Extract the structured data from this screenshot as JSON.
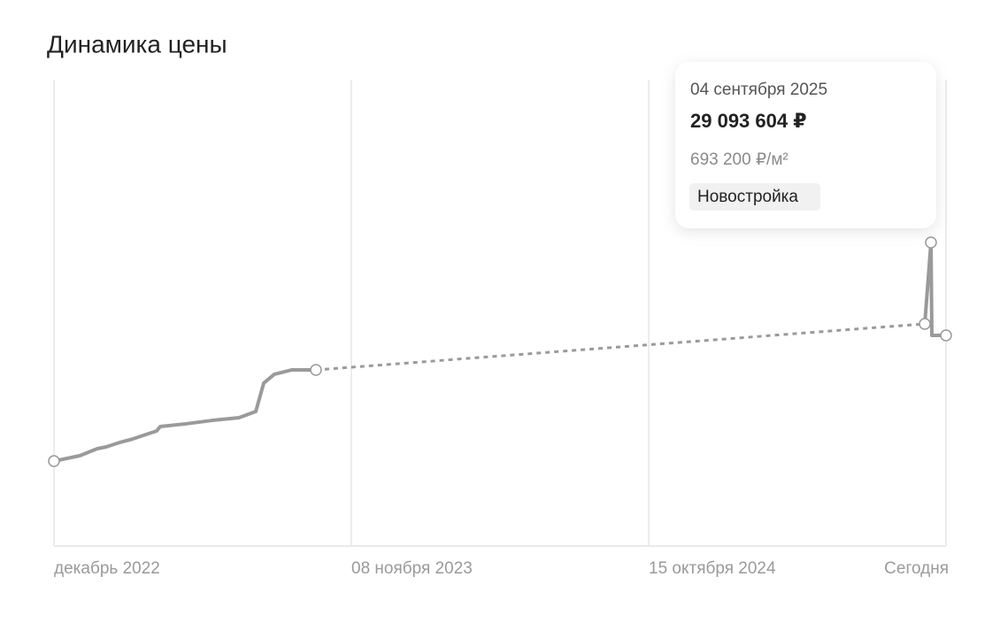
{
  "chart_data": {
    "type": "line",
    "title": "Динамика цены",
    "xlim": [
      0,
      1008
    ],
    "xticks": [
      {
        "value": 0,
        "label": "декабрь 2022"
      },
      {
        "value": 336,
        "label": "08 ноября 2023"
      },
      {
        "value": 672,
        "label": "15 октября 2024"
      },
      {
        "value": 1008,
        "label": "Сегодня"
      }
    ],
    "ylim": [
      0,
      44700000
    ],
    "grid": true,
    "connector": "dashed",
    "series": [
      {
        "color": "#9a9a9a",
        "x": [
          0,
          29,
          49,
          59,
          74,
          89,
          104,
          116,
          120,
          149,
          179,
          209,
          228,
          237,
          249,
          269,
          296
        ],
        "values": [
          8140000,
          8650000,
          9330000,
          9500000,
          9920000,
          10260000,
          10690000,
          11030000,
          11450000,
          11710000,
          12040000,
          12300000,
          12890000,
          15610000,
          16460000,
          16880000,
          16880000
        ]
      },
      {
        "color": "#9a9a9a",
        "x": [
          984,
          991,
          992,
          1008
        ],
        "values": [
          21290000,
          29093604,
          20190000,
          20190000
        ],
        "value_labels": [
          null,
          "29 093 604 ₽",
          null,
          null
        ]
      }
    ],
    "tooltip": {
      "date": "04 сентября 2025",
      "price_per_m2": "693 200 ₽/м²",
      "badge": "Новостройка"
    }
  }
}
